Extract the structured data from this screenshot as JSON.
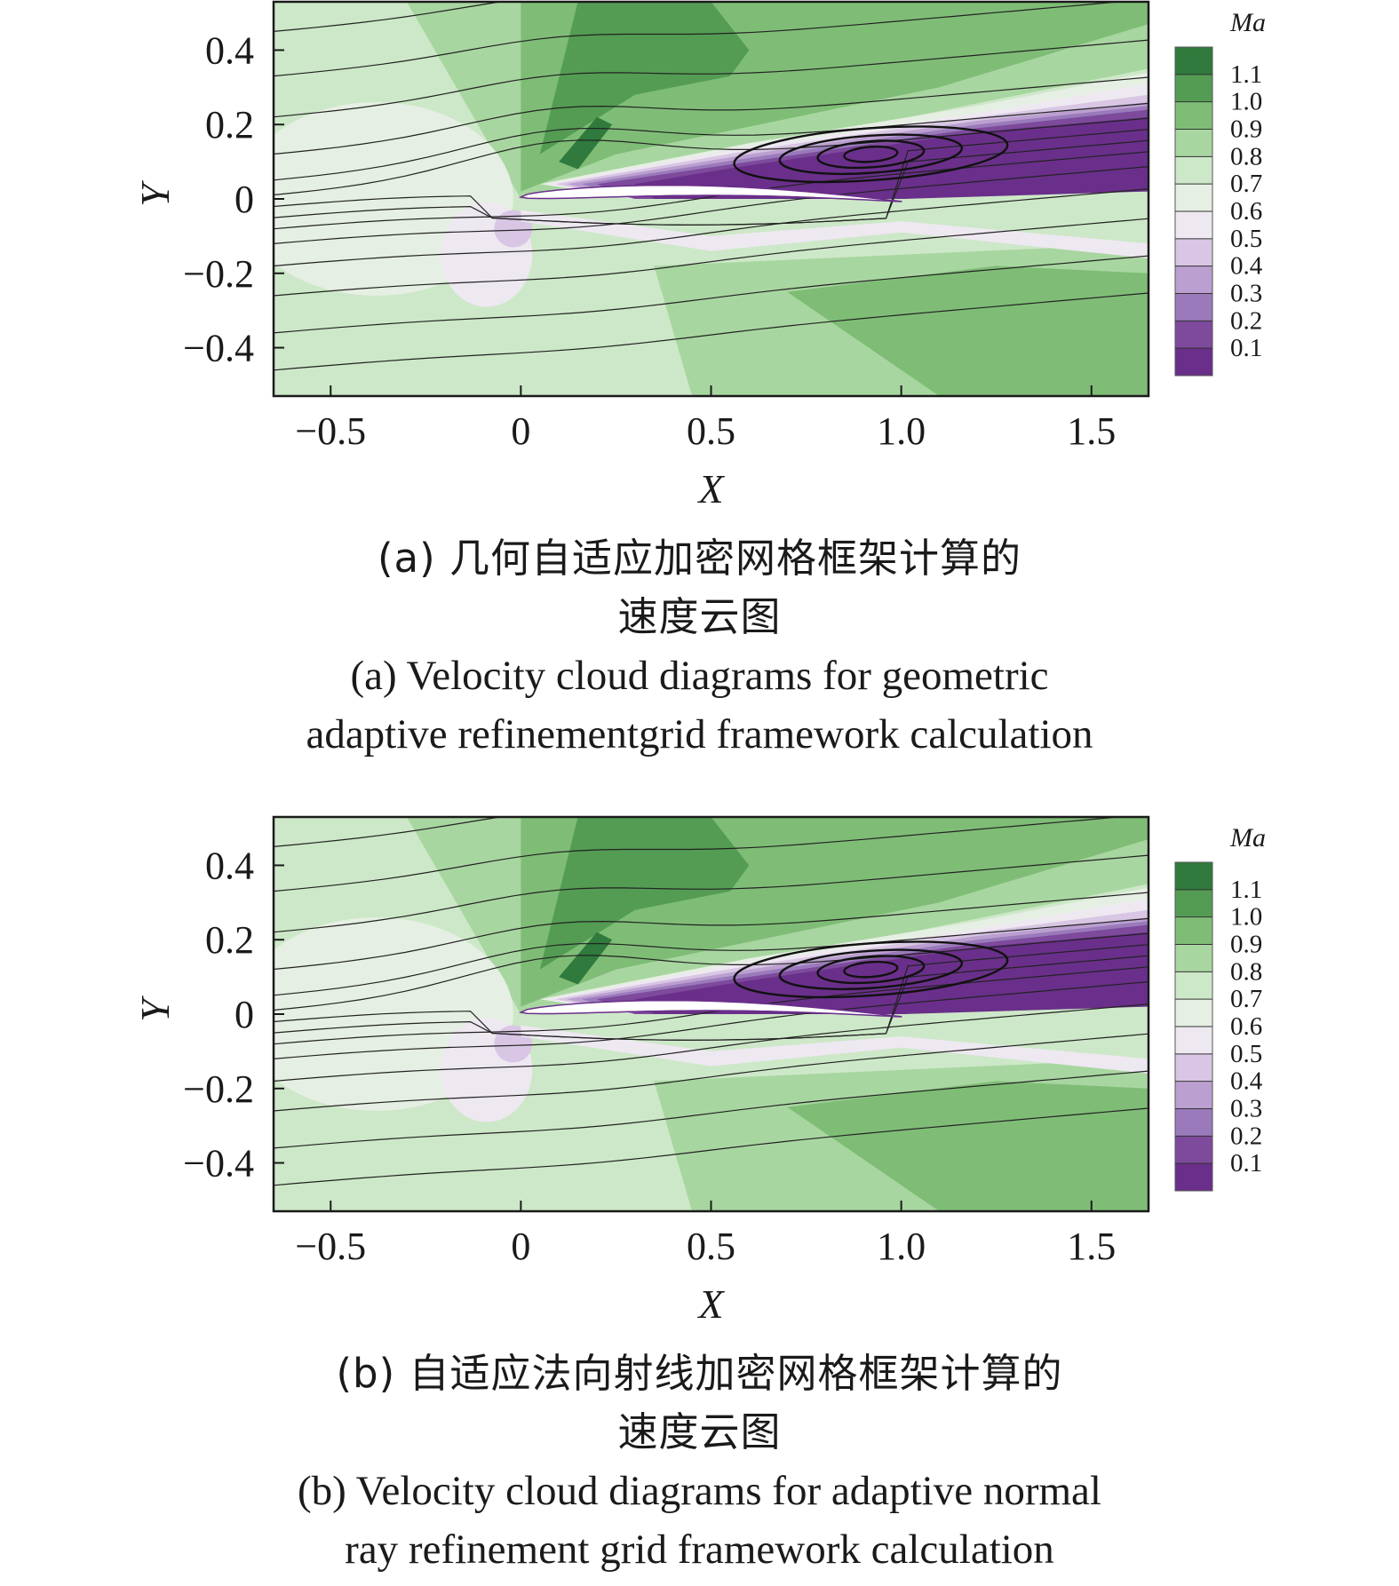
{
  "colors": {
    "levels": [
      "#6a2f8a",
      "#7d4a9c",
      "#9a7abb",
      "#bb9fd0",
      "#d8c6e4",
      "#eee8f1",
      "#e6efe3",
      "#cde8c8",
      "#a8d6a0",
      "#7fbd76",
      "#549c54",
      "#2f7a3c"
    ],
    "streamline": "#222222",
    "frame": "#1a1a1a",
    "airfoil": "#ffffff"
  },
  "chart_data": [
    {
      "type": "contour",
      "id": "a",
      "xlabel": "X",
      "ylabel": "Y",
      "xlim": [
        -0.65,
        1.65
      ],
      "ylim": [
        -0.53,
        0.53
      ],
      "xticks": [
        -0.5,
        0,
        0.5,
        1.0,
        1.5
      ],
      "xtick_labels": [
        "−0.5",
        "0",
        "0.5",
        "1.0",
        "1.5"
      ],
      "yticks": [
        0.4,
        0.2,
        0,
        -0.2,
        -0.4
      ],
      "ytick_labels": [
        "0.4",
        "0.2",
        "0",
        "−0.2",
        "−0.4"
      ],
      "colorbar": {
        "title": "Ma",
        "levels": [
          1.1,
          1.0,
          0.9,
          0.8,
          0.7,
          0.6,
          0.5,
          0.4,
          0.3,
          0.2,
          0.1
        ],
        "labels": [
          "1.1",
          "1.0",
          "0.9",
          "0.8",
          "0.7",
          "0.6",
          "0.5",
          "0.4",
          "0.3",
          "0.2",
          "0.1"
        ]
      },
      "caption_zh": [
        "(a) 几何自适应加密网格框架计算的",
        "速度云图"
      ],
      "caption_en": [
        "(a) Velocity cloud diagrams for geometric",
        "adaptive refinementgrid framework calculation"
      ]
    },
    {
      "type": "contour",
      "id": "b",
      "xlabel": "X",
      "ylabel": "Y",
      "xlim": [
        -0.65,
        1.65
      ],
      "ylim": [
        -0.53,
        0.53
      ],
      "xticks": [
        -0.5,
        0,
        0.5,
        1.0,
        1.5
      ],
      "xtick_labels": [
        "−0.5",
        "0",
        "0.5",
        "1.0",
        "1.5"
      ],
      "yticks": [
        0.4,
        0.2,
        0,
        -0.2,
        -0.4
      ],
      "ytick_labels": [
        "0.4",
        "0.2",
        "0",
        "−0.2",
        "−0.4"
      ],
      "colorbar": {
        "title": "Ma",
        "levels": [
          1.1,
          1.0,
          0.9,
          0.8,
          0.7,
          0.6,
          0.5,
          0.4,
          0.3,
          0.2,
          0.1
        ],
        "labels": [
          "1.1",
          "1.0",
          "0.9",
          "0.8",
          "0.7",
          "0.6",
          "0.5",
          "0.4",
          "0.3",
          "0.2",
          "0.1"
        ]
      },
      "caption_zh": [
        "(b) 自适应法向射线加密网格框架计算的",
        "速度云图"
      ],
      "caption_en": [
        "(b) Velocity cloud diagrams for adaptive normal",
        "ray refinement grid framework calculation"
      ]
    }
  ]
}
